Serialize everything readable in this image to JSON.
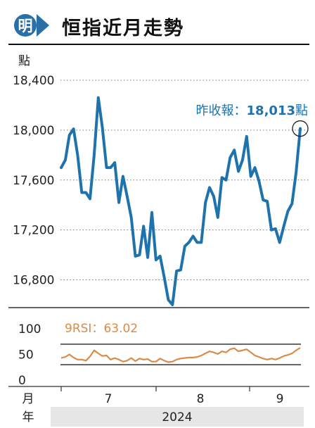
{
  "logo": {
    "glyph": "明",
    "icon": "ming-pao-logo-icon",
    "color": "#2a6fa8"
  },
  "title": "恒指近月走勢",
  "chart_data": [
    {
      "type": "line",
      "unit": "點",
      "ylim": [
        16600,
        18400
      ],
      "yticks": [
        16800,
        17200,
        17600,
        18000,
        18400
      ],
      "ytick_labels": [
        "16,800",
        "17,200",
        "17,600",
        "18,000",
        "18,400"
      ],
      "series": [
        {
          "values": [
            17700,
            17760,
            17960,
            18010,
            17800,
            17500,
            17500,
            17450,
            17800,
            18260,
            18020,
            17700,
            17700,
            17740,
            17420,
            17630,
            17470,
            17300,
            16990,
            17000,
            17230,
            16980,
            17340,
            16960,
            16990,
            16820,
            16640,
            16600,
            16870,
            16880,
            17070,
            17100,
            17150,
            17100,
            17100,
            17420,
            17540,
            17470,
            17300,
            17620,
            17600,
            17780,
            17840,
            17670,
            17760,
            17950,
            17630,
            17700,
            17590,
            17440,
            17430,
            17200,
            17210,
            17100,
            17230,
            17350,
            17410,
            17660,
            18013
          ],
          "color": "#1e73ad"
        }
      ],
      "annotation": {
        "label": "昨收報：",
        "value": "18,013",
        "unit": "點"
      },
      "grid": "dotted"
    },
    {
      "type": "line",
      "ylim": [
        0,
        100
      ],
      "yticks": [
        0,
        50,
        100
      ],
      "ytick_labels": [
        "0",
        "50",
        "100"
      ],
      "reference_lines": [
        30,
        70
      ],
      "series": [
        {
          "name": "9RSI",
          "values": [
            43,
            45,
            50,
            44,
            40,
            40,
            38,
            46,
            58,
            52,
            47,
            48,
            40,
            43,
            40,
            36,
            38,
            43,
            37,
            42,
            40,
            41,
            36,
            36,
            42,
            38,
            35,
            36,
            40,
            42,
            43,
            44,
            44,
            45,
            48,
            52,
            56,
            54,
            51,
            56,
            54,
            60,
            62,
            56,
            58,
            60,
            54,
            48,
            45,
            42,
            40,
            42,
            40,
            43,
            47,
            49,
            52,
            58,
            63.02
          ],
          "color": "#d98b4a"
        }
      ],
      "annotation": {
        "label": "9RSI：",
        "value": "63.02"
      }
    }
  ],
  "x_axis": {
    "month_label": "月",
    "months": [
      "7",
      "8",
      "9"
    ],
    "year_label": "年",
    "year": "2024"
  }
}
